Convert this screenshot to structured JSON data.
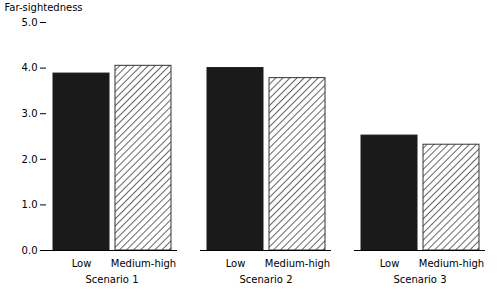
{
  "chart_data": {
    "type": "bar",
    "categories": [
      "Scenario 1",
      "Scenario 2",
      "Scenario 3"
    ],
    "series": [
      {
        "name": "Low",
        "color": "#1a1a1a",
        "values": [
          3.88,
          4.0,
          2.52
        ]
      },
      {
        "name": "Medium-high",
        "color": "#333333",
        "values": [
          4.05,
          3.78,
          2.32
        ]
      }
    ],
    "ylabel": "Far-sightedness",
    "ylim": [
      0,
      5
    ],
    "yticks": [
      0,
      1,
      2,
      3,
      4,
      5
    ],
    "grid": false
  }
}
